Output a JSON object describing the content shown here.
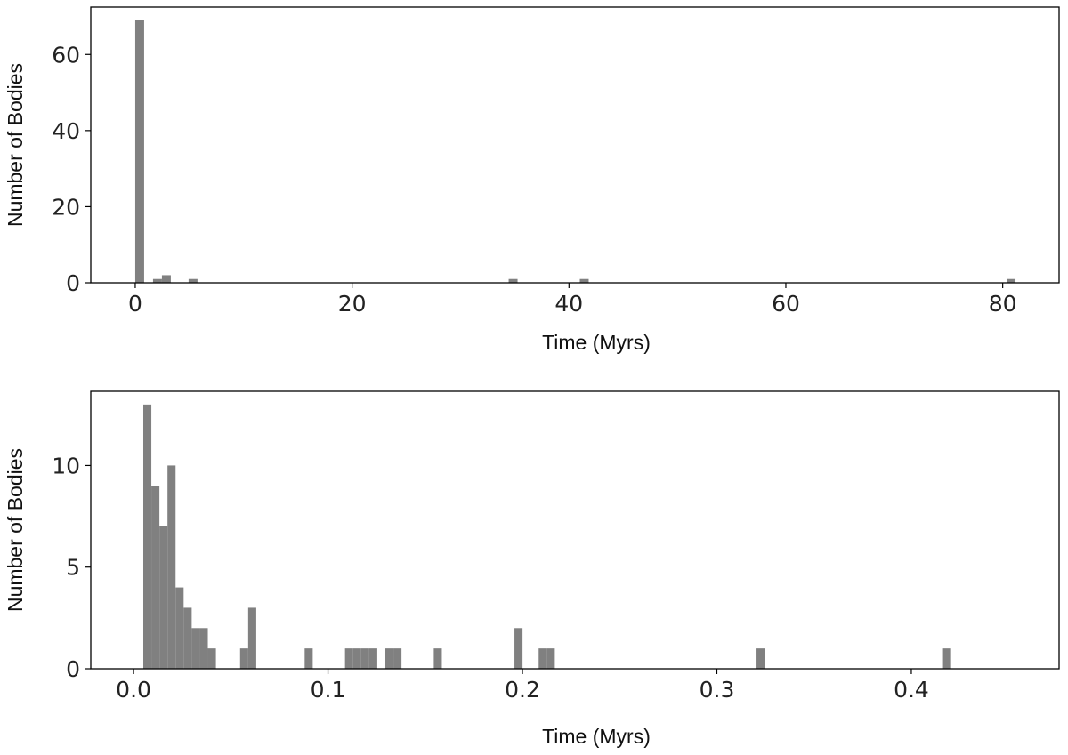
{
  "chart_data": [
    {
      "type": "histogram",
      "x_label": "Time (Myrs)",
      "y_label": "Number of Bodies",
      "color": "#808080",
      "bins": [
        0,
        0.82,
        1.64,
        2.46,
        3.28,
        4.1,
        4.92,
        5.74,
        6.56,
        7.38,
        8.2,
        9.02,
        9.84,
        10.66,
        11.48,
        12.3,
        13.12,
        13.94,
        14.76,
        15.58,
        16.4,
        17.22,
        18.04,
        18.86,
        19.68,
        20.5,
        21.32,
        22.14,
        22.96,
        23.78,
        24.6,
        25.42,
        26.24,
        27.06,
        27.88,
        28.7,
        29.52,
        30.34,
        31.16,
        31.98,
        32.8,
        33.62,
        34.44,
        35.26,
        36.08,
        36.9,
        37.72,
        38.54,
        39.36,
        40.18,
        41,
        41.82,
        42.64,
        43.46,
        44.28,
        45.1,
        45.92,
        46.74,
        47.56,
        48.38,
        49.2,
        50.02,
        50.84,
        51.66,
        52.48,
        53.3,
        54.12,
        54.94,
        55.76,
        56.58,
        57.4,
        58.22,
        59.04,
        59.86,
        60.68,
        61.5,
        62.32,
        63.14,
        63.96,
        64.78,
        65.6,
        66.42,
        67.24,
        68.06,
        68.88,
        69.7,
        70.52,
        71.34,
        72.16,
        72.98,
        73.8,
        74.62,
        75.44,
        76.26,
        77.08,
        77.9,
        78.72,
        79.54,
        80.36,
        81.18,
        82
      ],
      "values": [
        69,
        0,
        1,
        2,
        0,
        0,
        1,
        0,
        0,
        0,
        0,
        0,
        0,
        0,
        0,
        0,
        0,
        0,
        0,
        0,
        0,
        0,
        0,
        0,
        0,
        0,
        0,
        0,
        0,
        0,
        0,
        0,
        0,
        0,
        0,
        0,
        0,
        0,
        0,
        0,
        0,
        0,
        1,
        0,
        0,
        0,
        0,
        0,
        0,
        0,
        1,
        0,
        0,
        0,
        0,
        0,
        0,
        0,
        0,
        0,
        0,
        0,
        0,
        0,
        0,
        0,
        0,
        0,
        0,
        0,
        0,
        0,
        0,
        0,
        0,
        0,
        0,
        0,
        0,
        0,
        0,
        0,
        0,
        0,
        0,
        0,
        0,
        0,
        0,
        0,
        0,
        0,
        0,
        0,
        0,
        0,
        0,
        0,
        1,
        0
      ],
      "xlim": [
        -4.1,
        85.2
      ],
      "xticks": [
        0,
        20,
        40,
        60,
        80
      ],
      "ylim": [
        0,
        72.45
      ],
      "yticks": [
        0,
        20,
        40,
        60
      ]
    },
    {
      "type": "histogram",
      "x_label": "Time (Myrs)",
      "y_label": "Number of Bodies",
      "color": "#808080",
      "bins": [
        0.005,
        0.00915,
        0.0133,
        0.01745,
        0.0216,
        0.02575,
        0.0299,
        0.03405,
        0.0382,
        0.04235,
        0.0465,
        0.05065,
        0.0548,
        0.05895,
        0.0631,
        0.06725,
        0.0714,
        0.07555,
        0.0797,
        0.08385,
        0.088,
        0.09215,
        0.0963,
        0.10045,
        0.1046,
        0.10875,
        0.1129,
        0.11705,
        0.1212,
        0.12535,
        0.1295,
        0.13365,
        0.1378,
        0.14195,
        0.1461,
        0.15025,
        0.1544,
        0.15855,
        0.1627,
        0.16685,
        0.171,
        0.17515,
        0.1793,
        0.18345,
        0.1876,
        0.19175,
        0.1959,
        0.20005,
        0.2042,
        0.20835,
        0.2125,
        0.21665,
        0.2208,
        0.22495,
        0.2291,
        0.23325,
        0.2374,
        0.24155,
        0.2457,
        0.24985,
        0.254,
        0.25815,
        0.2623,
        0.26645,
        0.2706,
        0.27475,
        0.2789,
        0.28305,
        0.2872,
        0.29135,
        0.2955,
        0.29965,
        0.3038,
        0.30795,
        0.3121,
        0.31625,
        0.3204,
        0.32455,
        0.3287,
        0.33285,
        0.337,
        0.34115,
        0.3453,
        0.34945,
        0.3536,
        0.35775,
        0.3619,
        0.36605,
        0.3702,
        0.37435,
        0.3785,
        0.38265,
        0.3868,
        0.39095,
        0.3951,
        0.39925,
        0.4034,
        0.40755,
        0.4117,
        0.41585,
        0.42
      ],
      "values": [
        13,
        9,
        7,
        10,
        4,
        3,
        2,
        2,
        1,
        0,
        0,
        0,
        1,
        3,
        0,
        0,
        0,
        0,
        0,
        0,
        1,
        0,
        0,
        0,
        0,
        1,
        1,
        1,
        1,
        0,
        1,
        1,
        0,
        0,
        0,
        0,
        1,
        0,
        0,
        0,
        0,
        0,
        0,
        0,
        0,
        0,
        2,
        0,
        0,
        1,
        1,
        0,
        0,
        0,
        0,
        0,
        0,
        0,
        0,
        0,
        0,
        0,
        0,
        0,
        0,
        0,
        0,
        0,
        0,
        0,
        0,
        0,
        0,
        0,
        0,
        0,
        1,
        0,
        0,
        0,
        0,
        0,
        0,
        0,
        0,
        0,
        0,
        0,
        0,
        0,
        0,
        0,
        0,
        0,
        0,
        0,
        0,
        0,
        0,
        1
      ],
      "xlim": [
        -0.022,
        0.476
      ],
      "xticks": [
        {
          "value": 0,
          "label": "0.0"
        },
        0.1,
        0.2,
        0.3,
        0.4
      ],
      "ylim": [
        0,
        13.65
      ],
      "yticks": [
        0,
        5,
        10
      ]
    }
  ]
}
